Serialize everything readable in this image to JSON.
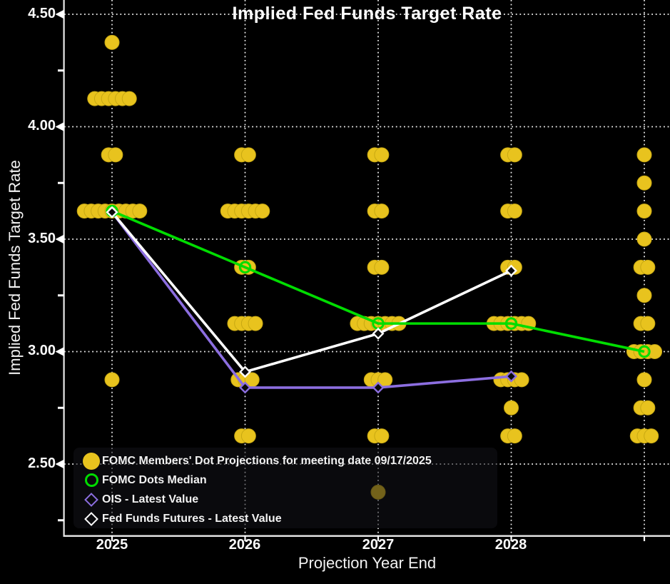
{
  "title": "Implied Fed Funds Target Rate",
  "axes": {
    "x_label": "Projection Year End",
    "y_label": "Implied Fed Funds Target Rate",
    "y_ticks": [
      "4.50",
      "4.00",
      "3.50",
      "3.00",
      "2.50"
    ],
    "x_ticks": [
      "2025",
      "2026",
      "2027",
      "2028"
    ]
  },
  "legend": {
    "items": [
      {
        "label": "FOMC Members' Dot Projections for meeting date 09/17/2025",
        "marker": "filled-circle",
        "color": "#e8c31e"
      },
      {
        "label": "FOMC Dots Median",
        "marker": "open-circle",
        "color": "#00dd00"
      },
      {
        "label": "OIS - Latest Value",
        "marker": "open-diamond",
        "color": "#8c6ee0"
      },
      {
        "label": "Fed Funds Futures - Latest Value",
        "marker": "open-diamond",
        "color": "#ffffff"
      }
    ]
  },
  "colors": {
    "background": "#000000",
    "text": "#f5f5f5",
    "gridline": "#ffffff",
    "axis": "#e9e9e9",
    "dots": "#e8c31e",
    "dot_edge": "#c7a812",
    "median_line": "#00dd00",
    "ois_line": "#8c6ee0",
    "futures_line": "#ffffff"
  },
  "chart_data": {
    "type": "scatter",
    "title": "Implied Fed Funds Target Rate",
    "xlabel": "Projection Year End",
    "ylabel": "Implied Fed Funds Target Rate",
    "meeting_date": "09/17/2025",
    "y_axis": {
      "major_ticks": [
        4.5,
        4.0,
        3.5,
        3.0,
        2.5
      ],
      "minor_ticks": [
        4.25,
        3.75,
        3.25,
        2.75,
        2.25
      ],
      "visible_range": [
        2.18,
        4.56
      ],
      "grid": "dotted"
    },
    "columns": [
      {
        "label": "2025",
        "dots": [
          {
            "rate": 4.375,
            "count": 1
          },
          {
            "rate": 4.125,
            "count": 6
          },
          {
            "rate": 3.875,
            "count": 2
          },
          {
            "rate": 3.625,
            "count": 9
          },
          {
            "rate": 2.875,
            "count": 1
          }
        ]
      },
      {
        "label": "2026",
        "dots": [
          {
            "rate": 3.875,
            "count": 2
          },
          {
            "rate": 3.625,
            "count": 6
          },
          {
            "rate": 3.375,
            "count": 2
          },
          {
            "rate": 3.125,
            "count": 4
          },
          {
            "rate": 2.875,
            "count": 3
          },
          {
            "rate": 2.625,
            "count": 2
          }
        ]
      },
      {
        "label": "2027",
        "dots": [
          {
            "rate": 3.875,
            "count": 2
          },
          {
            "rate": 3.625,
            "count": 2
          },
          {
            "rate": 3.375,
            "count": 2
          },
          {
            "rate": 3.125,
            "count": 7
          },
          {
            "rate": 2.875,
            "count": 3
          },
          {
            "rate": 2.625,
            "count": 2
          },
          {
            "rate": 2.375,
            "count": 1
          }
        ]
      },
      {
        "label": "2028",
        "dots": [
          {
            "rate": 3.875,
            "count": 2
          },
          {
            "rate": 3.625,
            "count": 2
          },
          {
            "rate": 3.375,
            "count": 2
          },
          {
            "rate": 3.125,
            "count": 6
          },
          {
            "rate": 2.875,
            "count": 4
          },
          {
            "rate": 2.75,
            "count": 1
          },
          {
            "rate": 2.625,
            "count": 2
          }
        ]
      },
      {
        "label": "",
        "dots": [
          {
            "rate": 3.875,
            "count": 1
          },
          {
            "rate": 3.75,
            "count": 1
          },
          {
            "rate": 3.625,
            "count": 1
          },
          {
            "rate": 3.5,
            "count": 1
          },
          {
            "rate": 3.375,
            "count": 2
          },
          {
            "rate": 3.25,
            "count": 1
          },
          {
            "rate": 3.125,
            "count": 2
          },
          {
            "rate": 3.0,
            "count": 4
          },
          {
            "rate": 2.875,
            "count": 1
          },
          {
            "rate": 2.75,
            "count": 2
          },
          {
            "rate": 2.625,
            "count": 3
          }
        ]
      }
    ],
    "series": [
      {
        "name": "FOMC Dots Median",
        "marker": "open-circle",
        "color": "#00dd00",
        "values": [
          3.625,
          3.375,
          3.125,
          3.125,
          3.0
        ]
      },
      {
        "name": "OIS - Latest Value",
        "marker": "open-diamond",
        "color": "#8c6ee0",
        "values": [
          3.62,
          2.84,
          2.84,
          2.89,
          null
        ]
      },
      {
        "name": "Fed Funds Futures - Latest Value",
        "marker": "open-diamond",
        "color": "#ffffff",
        "values": [
          3.62,
          2.91,
          3.08,
          3.36,
          null
        ]
      }
    ]
  }
}
